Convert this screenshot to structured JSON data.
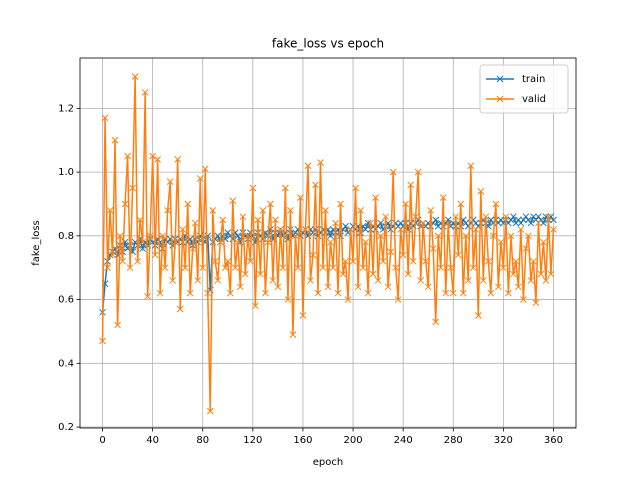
{
  "chart_data": {
    "type": "line",
    "title": "fake_loss vs epoch",
    "x_label": "epoch",
    "y_label": "fake_loss",
    "x": [
      0,
      2,
      4,
      6,
      8,
      10,
      12,
      14,
      16,
      18,
      20,
      22,
      24,
      26,
      28,
      30,
      32,
      34,
      36,
      38,
      40,
      42,
      44,
      46,
      48,
      50,
      52,
      54,
      56,
      58,
      60,
      62,
      64,
      66,
      68,
      70,
      72,
      74,
      76,
      78,
      80,
      82,
      84,
      86,
      88,
      90,
      92,
      94,
      96,
      98,
      100,
      102,
      104,
      106,
      108,
      110,
      112,
      114,
      116,
      118,
      120,
      122,
      124,
      126,
      128,
      130,
      132,
      134,
      136,
      138,
      140,
      142,
      144,
      146,
      148,
      150,
      152,
      154,
      156,
      158,
      160,
      162,
      164,
      166,
      168,
      170,
      172,
      174,
      176,
      178,
      180,
      182,
      184,
      186,
      188,
      190,
      192,
      194,
      196,
      198,
      200,
      202,
      204,
      206,
      208,
      210,
      212,
      214,
      216,
      218,
      220,
      222,
      224,
      226,
      228,
      230,
      232,
      234,
      236,
      238,
      240,
      242,
      244,
      246,
      248,
      250,
      252,
      254,
      256,
      258,
      260,
      262,
      264,
      266,
      268,
      270,
      272,
      274,
      276,
      278,
      280,
      282,
      284,
      286,
      288,
      290,
      292,
      294,
      296,
      298,
      300,
      302,
      304,
      306,
      308,
      310,
      312,
      314,
      316,
      318,
      320,
      322,
      324,
      326,
      328,
      330,
      332,
      334,
      336,
      338,
      340,
      342,
      344,
      346,
      348,
      350,
      352,
      354,
      356,
      358,
      360
    ],
    "series": [
      {
        "name": "train",
        "color": "#1f77b4",
        "values": [
          0.56,
          0.65,
          0.72,
          0.74,
          0.75,
          0.76,
          0.74,
          0.77,
          0.75,
          0.78,
          0.76,
          0.77,
          0.75,
          0.78,
          0.77,
          0.79,
          0.76,
          0.78,
          0.77,
          0.79,
          0.78,
          0.77,
          0.79,
          0.78,
          0.76,
          0.79,
          0.78,
          0.79,
          0.77,
          0.79,
          0.78,
          0.79,
          0.78,
          0.8,
          0.78,
          0.79,
          0.77,
          0.79,
          0.78,
          0.8,
          0.79,
          0.78,
          0.8,
          0.63,
          0.78,
          0.79,
          0.8,
          0.78,
          0.8,
          0.79,
          0.81,
          0.8,
          0.79,
          0.81,
          0.8,
          0.78,
          0.81,
          0.8,
          0.79,
          0.81,
          0.8,
          0.78,
          0.81,
          0.8,
          0.79,
          0.81,
          0.8,
          0.82,
          0.79,
          0.81,
          0.8,
          0.82,
          0.8,
          0.81,
          0.79,
          0.82,
          0.8,
          0.81,
          0.82,
          0.8,
          0.81,
          0.82,
          0.8,
          0.82,
          0.81,
          0.82,
          0.8,
          0.81,
          0.82,
          0.81,
          0.82,
          0.8,
          0.82,
          0.81,
          0.82,
          0.8,
          0.82,
          0.83,
          0.81,
          0.82,
          0.83,
          0.82,
          0.83,
          0.81,
          0.83,
          0.82,
          0.84,
          0.82,
          0.83,
          0.82,
          0.83,
          0.84,
          0.82,
          0.83,
          0.84,
          0.82,
          0.83,
          0.84,
          0.83,
          0.84,
          0.83,
          0.84,
          0.82,
          0.84,
          0.83,
          0.84,
          0.85,
          0.83,
          0.84,
          0.83,
          0.84,
          0.83,
          0.84,
          0.85,
          0.83,
          0.84,
          0.83,
          0.84,
          0.85,
          0.83,
          0.84,
          0.83,
          0.84,
          0.83,
          0.85,
          0.84,
          0.83,
          0.84,
          0.85,
          0.84,
          0.83,
          0.84,
          0.85,
          0.84,
          0.83,
          0.85,
          0.84,
          0.85,
          0.84,
          0.85,
          0.84,
          0.85,
          0.84,
          0.85,
          0.86,
          0.84,
          0.85,
          0.84,
          0.85,
          0.86,
          0.85,
          0.84,
          0.86,
          0.85,
          0.86,
          0.85,
          0.84,
          0.86,
          0.85,
          0.86,
          0.85
        ]
      },
      {
        "name": "valid",
        "color": "#ff7f0e",
        "values": [
          0.47,
          1.17,
          0.7,
          0.88,
          0.74,
          1.1,
          0.52,
          0.8,
          0.72,
          0.9,
          1.05,
          0.7,
          0.95,
          1.3,
          0.72,
          0.85,
          0.78,
          1.25,
          0.61,
          0.8,
          1.05,
          0.74,
          1.04,
          0.62,
          0.8,
          0.7,
          0.88,
          0.97,
          0.66,
          0.78,
          1.04,
          0.57,
          0.82,
          0.7,
          0.9,
          0.62,
          0.76,
          0.84,
          0.66,
          0.98,
          0.7,
          1.01,
          0.62,
          0.25,
          0.88,
          0.72,
          0.66,
          0.78,
          0.85,
          0.7,
          0.72,
          0.62,
          0.91,
          0.7,
          0.78,
          0.64,
          0.86,
          0.68,
          0.8,
          0.72,
          0.95,
          0.58,
          0.85,
          0.68,
          0.88,
          0.62,
          0.78,
          0.9,
          0.66,
          0.85,
          0.64,
          0.82,
          0.7,
          0.95,
          0.6,
          0.88,
          0.49,
          0.8,
          0.7,
          0.92,
          0.55,
          0.82,
          1.02,
          0.66,
          0.74,
          0.96,
          0.62,
          1.03,
          0.7,
          0.88,
          0.64,
          0.78,
          0.7,
          0.84,
          0.62,
          0.9,
          0.68,
          0.72,
          0.6,
          0.82,
          0.72,
          0.95,
          0.64,
          0.88,
          0.7,
          0.78,
          0.62,
          0.84,
          0.68,
          0.92,
          0.66,
          0.8,
          0.72,
          0.86,
          0.64,
          0.75,
          1.0,
          0.7,
          0.6,
          0.82,
          0.74,
          0.9,
          0.68,
          0.96,
          0.72,
          0.86,
          1.0,
          0.66,
          0.84,
          0.72,
          0.64,
          0.88,
          0.76,
          0.53,
          0.8,
          0.7,
          0.92,
          0.62,
          0.84,
          0.7,
          0.62,
          0.86,
          0.74,
          0.9,
          0.62,
          0.8,
          0.66,
          1.02,
          0.7,
          0.82,
          0.55,
          0.94,
          0.66,
          0.86,
          0.72,
          0.62,
          0.8,
          0.9,
          0.64,
          0.78,
          0.7,
          0.86,
          0.62,
          0.8,
          0.68,
          0.72,
          0.64,
          0.82,
          0.6,
          0.76,
          0.8,
          0.66,
          0.72,
          0.59,
          0.84,
          0.68,
          0.78,
          0.66,
          0.86,
          0.68,
          0.82
        ]
      }
    ],
    "xlim": [
      -18,
      378
    ],
    "ylim": [
      0.197,
      1.358
    ],
    "xticks": [
      0,
      40,
      80,
      120,
      160,
      200,
      240,
      280,
      320,
      360
    ],
    "yticks": [
      0.2,
      0.4,
      0.6,
      0.8,
      {
        "value": 1,
        "label": "1.0"
      },
      1.2
    ],
    "grid": true,
    "legend": "upper right"
  }
}
